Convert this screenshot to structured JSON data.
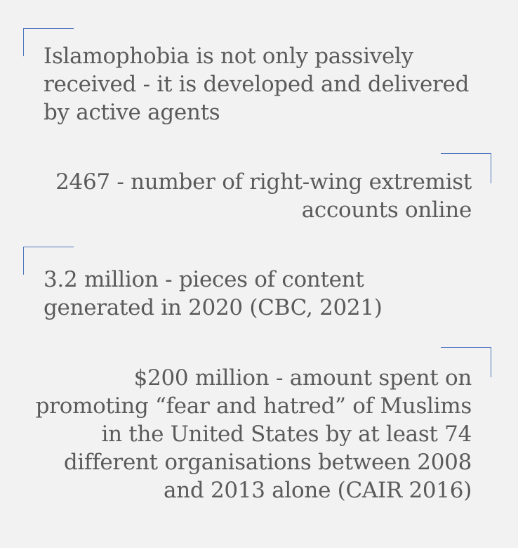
{
  "blocks": [
    {
      "name": "intro-statement",
      "lines": [
        "Islamophobia is not only passively",
        "received - it is developed and delivered",
        "by active agents"
      ]
    },
    {
      "name": "stat-extremist-accounts",
      "lines": [
        "2467 - number of right-wing extremist",
        "accounts online"
      ]
    },
    {
      "name": "stat-pieces-of-content",
      "lines": [
        "3.2 million - pieces of content",
        "generated in 2020 (CBC, 2021)"
      ]
    },
    {
      "name": "stat-amount-spent",
      "lines": [
        "$200 million - amount spent on",
        "promoting “fear and hatred” of Muslims",
        "in the United States by at least 74",
        "different organisations between 2008",
        "and 2013 alone (CAIR 2016)"
      ]
    }
  ],
  "accent_color": "#4f76c0",
  "text_color": "#5a5a5a",
  "background_color": "#f2f2f2"
}
